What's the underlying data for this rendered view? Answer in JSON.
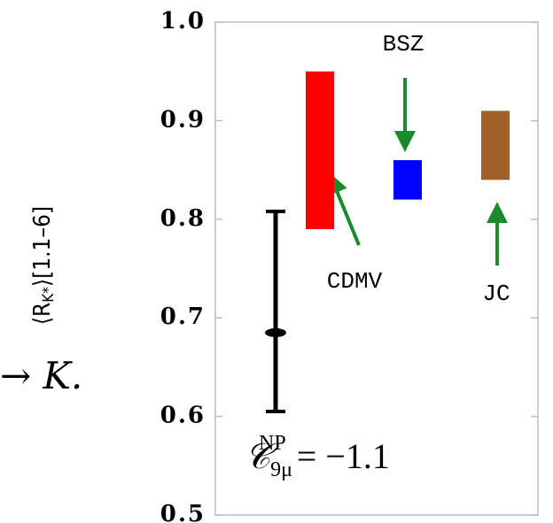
{
  "chart_data": {
    "type": "range-bar",
    "side_text": "→ K.",
    "ylabel": {
      "main": "⟨R",
      "sub": "K*",
      "tail": "⟩[1.1–6]"
    },
    "annotation": {
      "symbol": "𝒞",
      "sub": "9μ",
      "sup": "NP",
      "rhs": "= −1.1"
    },
    "categories": [
      null,
      "CDMV",
      "BSZ",
      "JC"
    ],
    "low": [
      0.605,
      0.79,
      0.82,
      0.84
    ],
    "high": [
      0.808,
      0.95,
      0.86,
      0.91
    ],
    "point": [
      0.685,
      null,
      null,
      null
    ],
    "colors": [
      "#000000",
      "#ff0000",
      "#0000ff",
      "#a0622d"
    ],
    "ylim": [
      0.5,
      1.0
    ],
    "yticks": [
      {
        "value": 0.5,
        "label": "0.5"
      },
      0.6,
      0.7,
      0.8,
      0.9,
      {
        "value": 1.0,
        "label": "1.0"
      }
    ]
  }
}
